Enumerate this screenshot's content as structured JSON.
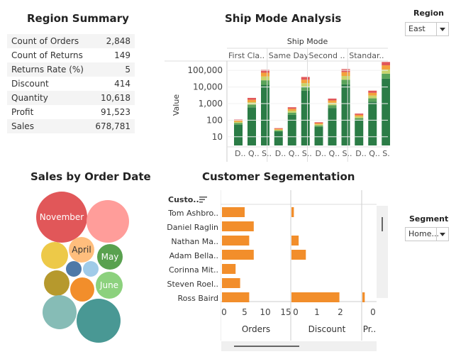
{
  "region_summary": {
    "title": "Region Summary",
    "rows": [
      {
        "label": "Count of Orders",
        "value": "2,848"
      },
      {
        "label": "Count of Returns",
        "value": "149"
      },
      {
        "label": "Returns Rate (%)",
        "value": "5"
      },
      {
        "label": "Discount",
        "value": "414"
      },
      {
        "label": "Quantity",
        "value": "10,618"
      },
      {
        "label": "Profit",
        "value": "91,523"
      },
      {
        "label": "Sales",
        "value": "678,781"
      }
    ]
  },
  "ship_mode": {
    "title": "Ship Mode Analysis",
    "header": "Ship Mode",
    "columns": [
      "First Cla..",
      "Same Day",
      "Second ..",
      "Standar.."
    ],
    "sub_labels": [
      "D..",
      "Q..",
      "S.."
    ],
    "ylabel": "Value",
    "yticks": [
      "100,000",
      "10,000",
      "1,000",
      "100",
      "10"
    ]
  },
  "region_filter": {
    "label": "Region",
    "value": "East"
  },
  "segment_filter": {
    "label": "Segment",
    "value": "Home..."
  },
  "sales_by_date": {
    "title": "Sales by Order Date",
    "bubbles": [
      {
        "label": "November",
        "color": "#e15759"
      },
      {
        "label": "",
        "color": "#ff9d9a"
      },
      {
        "label": "",
        "color": "#edc948"
      },
      {
        "label": "April",
        "color": "#ffbe7d"
      },
      {
        "label": "May",
        "color": "#59a14f"
      },
      {
        "label": "",
        "color": "#4e79a7"
      },
      {
        "label": "",
        "color": "#a0cbe8"
      },
      {
        "label": "",
        "color": "#b6992d"
      },
      {
        "label": "",
        "color": "#f28e2b"
      },
      {
        "label": "June",
        "color": "#8cd17d"
      },
      {
        "label": "",
        "color": "#86bcb6"
      },
      {
        "label": "",
        "color": "#499894"
      }
    ]
  },
  "customer_seg": {
    "title": "Customer Segementation",
    "name_header": "Custo..",
    "customers": [
      "Tom Ashbro..",
      "Daniel Raglin",
      "Nathan Ma..",
      "Adam Bella..",
      "Corinna Mit..",
      "Steven Roel..",
      "Ross Baird"
    ],
    "orders_axis_title": "Orders",
    "orders_ticks": [
      "0",
      "5",
      "10",
      "15"
    ],
    "discount_axis_title": "Discount",
    "discount_ticks": [
      "0",
      "1",
      "2"
    ],
    "profit_axis_title": "Pr..",
    "profit_ticks": [
      "0"
    ]
  },
  "chart_data": [
    {
      "type": "bar",
      "title": "Ship Mode Analysis",
      "xlabel": "Ship Mode",
      "ylabel": "Value",
      "yscale": "log",
      "ylim": [
        3,
        300000
      ],
      "groups": [
        "First Cla..",
        "Same Day",
        "Second ..",
        "Standar.."
      ],
      "sub_categories": [
        "D..",
        "Q..",
        "S.."
      ],
      "values": [
        [
          110,
          2200,
          110000
        ],
        [
          33,
          600,
          40000
        ],
        [
          75,
          2000,
          120000
        ],
        [
          250,
          6000,
          320000
        ]
      ],
      "stack_colors": [
        "#2b7c46",
        "#5aa35a",
        "#c9d36b",
        "#f3a13b",
        "#e15759"
      ]
    },
    {
      "type": "bar",
      "orientation": "horizontal",
      "title": "Customer Segementation",
      "categories": [
        "Tom Ashbro..",
        "Daniel Raglin",
        "Nathan Ma..",
        "Adam Bella..",
        "Corinna Mit..",
        "Steven Roel..",
        "Ross Baird"
      ],
      "series": [
        {
          "name": "Orders",
          "values": [
            5,
            7,
            6,
            7,
            3,
            4,
            6
          ],
          "xlim": [
            0,
            15
          ]
        },
        {
          "name": "Discount",
          "values": [
            0.1,
            0,
            0.3,
            0.6,
            0,
            0,
            2.0
          ],
          "xlim": [
            0,
            2.9
          ]
        },
        {
          "name": "Pr..",
          "values": [
            0,
            0,
            0,
            0,
            0,
            0,
            10
          ],
          "xlim": [
            0,
            60
          ]
        }
      ],
      "color": "#f28e2b"
    }
  ]
}
